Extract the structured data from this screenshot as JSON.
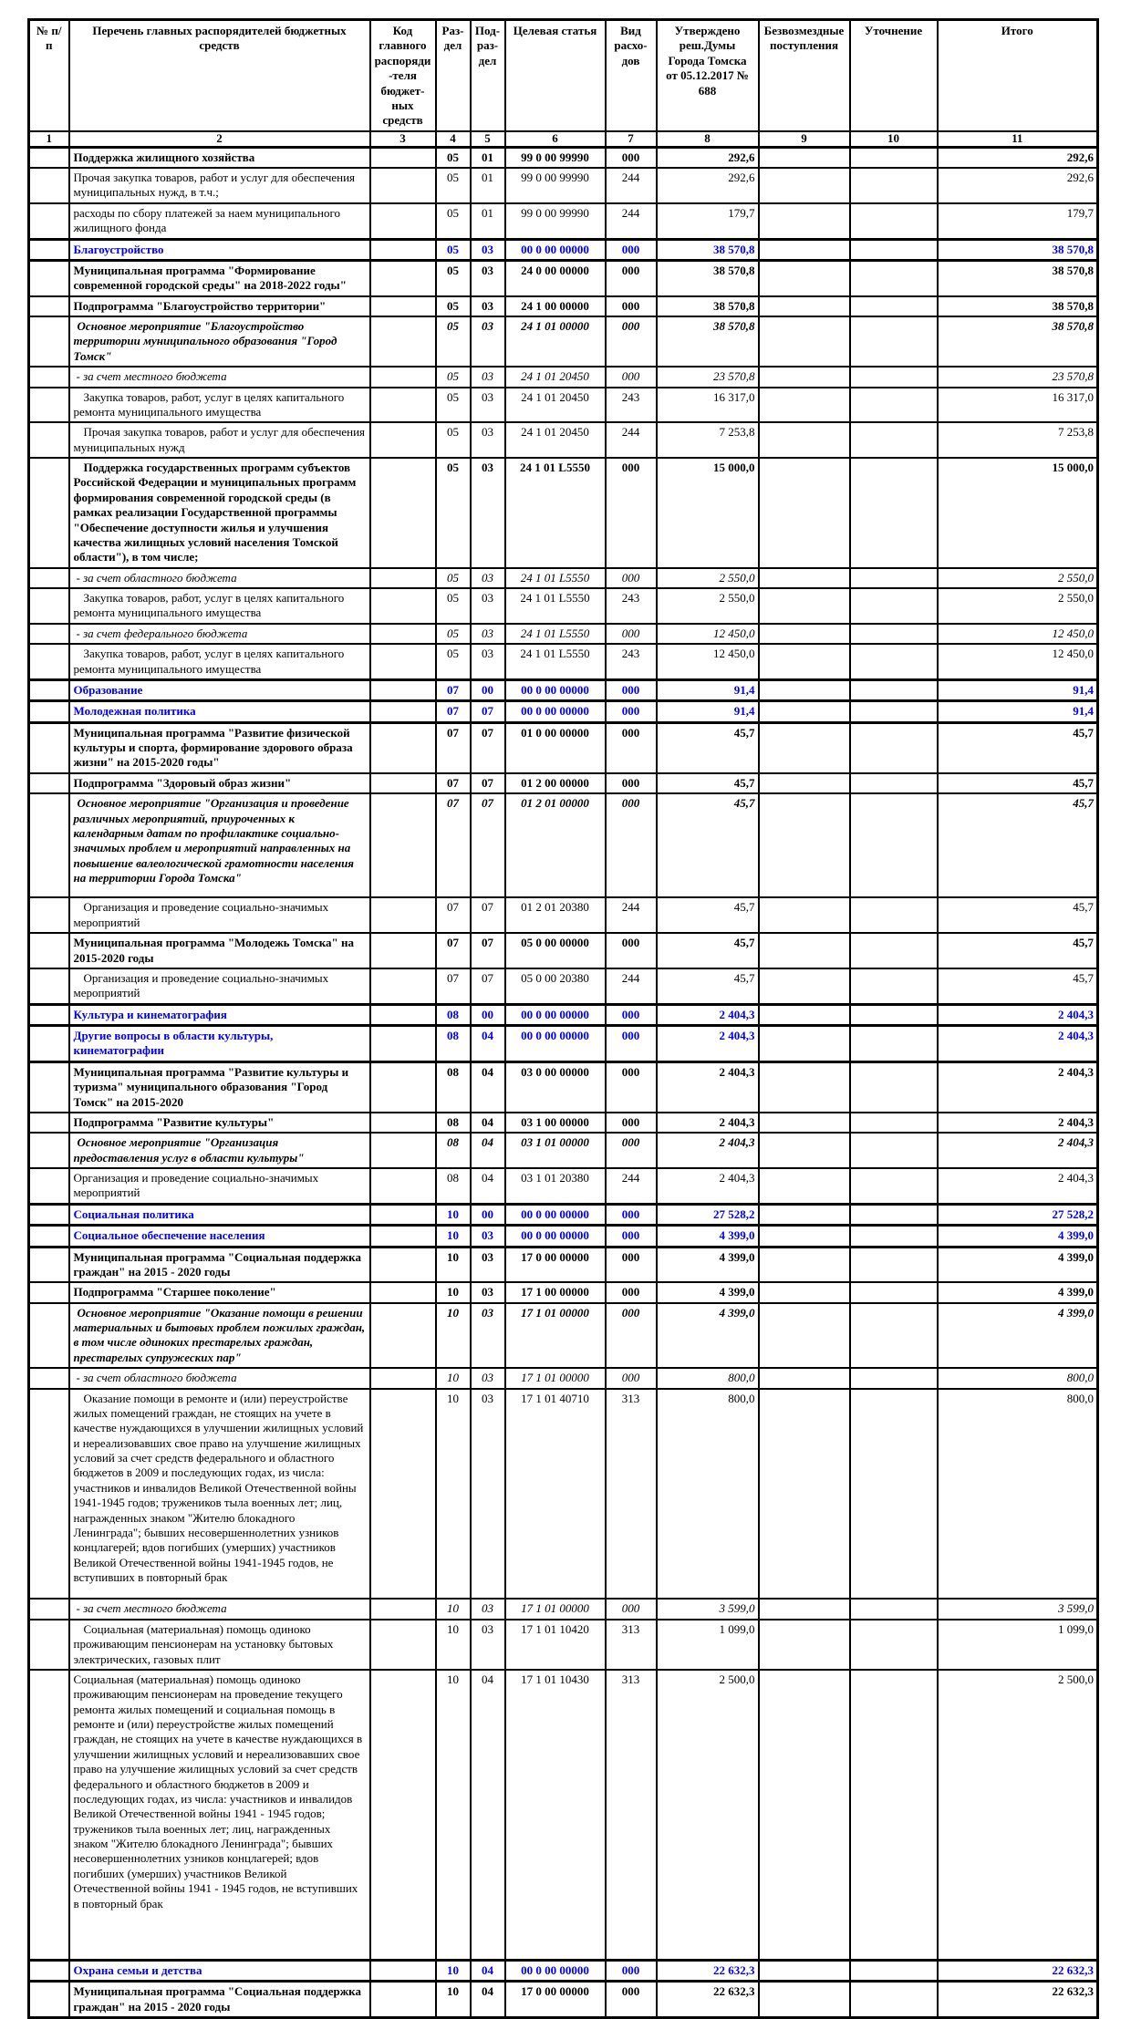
{
  "header": {
    "columns": [
      {
        "id": "num",
        "label": "№ п/п",
        "number": "1"
      },
      {
        "id": "name",
        "label": "Перечень главных распорядителей бюджетных средств",
        "number": "2"
      },
      {
        "id": "code",
        "label": "Код главного распоряди-теля бюджет-ных средств",
        "number": "3"
      },
      {
        "id": "razdel",
        "label": "Раз-дел",
        "number": "4"
      },
      {
        "id": "podrazdel",
        "label": "Под-раз-дел",
        "number": "5"
      },
      {
        "id": "target",
        "label": "Целевая статья",
        "number": "6"
      },
      {
        "id": "vid",
        "label": "Вид расхо-дов",
        "number": "7"
      },
      {
        "id": "approved",
        "label": "Утверждено реш.Думы Города Томска от 05.12.2017 № 688",
        "number": "8"
      },
      {
        "id": "bezv",
        "label": "Безвозмездные поступления",
        "number": "9"
      },
      {
        "id": "utoch",
        "label": "Уточнение",
        "number": "10"
      },
      {
        "id": "total",
        "label": "Итого",
        "number": "11"
      }
    ]
  },
  "rows": [
    {
      "style": "program-bold",
      "name": "Поддержка жилищного хозяйства",
      "razdel": "05",
      "podrazdel": "01",
      "target": "99 0 00 99990",
      "vid": "000",
      "approved": "292,6",
      "total": "292,6"
    },
    {
      "style": "plain",
      "name": "Прочая закупка товаров, работ и услуг для обеспечения муниципальных нужд, в т.ч.;",
      "razdel": "05",
      "podrazdel": "01",
      "target": "99 0 00 99990",
      "vid": "244",
      "approved": "292,6",
      "total": "292,6"
    },
    {
      "style": "plain",
      "name": "расходы по сбору платежей за наем муниципального жилищного фонда",
      "razdel": "05",
      "podrazdel": "01",
      "target": "99 0 00 99990",
      "vid": "244",
      "approved": "179,7",
      "total": "179,7"
    },
    {
      "style": "section-blue",
      "name": "Благоустройство",
      "razdel": "05",
      "podrazdel": "03",
      "target": "00 0 00 00000",
      "vid": "000",
      "approved": "38 570,8",
      "total": "38 570,8"
    },
    {
      "style": "program-bold",
      "name": "Муниципальная программа \"Формирование современной городской среды\" на 2018-2022 годы\"",
      "razdel": "05",
      "podrazdel": "03",
      "target": "24 0 00 00000",
      "vid": "000",
      "approved": "38 570,8",
      "total": "38 570,8"
    },
    {
      "style": "program-bold",
      "name": "Подпрограмма \"Благоустройство территории\"",
      "razdel": "05",
      "podrazdel": "03",
      "target": "24 1 00 00000",
      "vid": "000",
      "approved": "38 570,8",
      "total": "38 570,8"
    },
    {
      "style": "event-bolditalic",
      "name": "Основное мероприятие \"Благоустройство территории муниципального образования \"Город Томск\"",
      "razdel": "05",
      "podrazdel": "03",
      "target": "24 1 01 00000",
      "vid": "000",
      "approved": "38 570,8",
      "total": "38 570,8"
    },
    {
      "style": "source-italic",
      "name": "- за счет местного бюджета",
      "razdel": "05",
      "podrazdel": "03",
      "target": "24 1 01 20450",
      "vid": "000",
      "approved": "23 570,8",
      "total": "23 570,8"
    },
    {
      "style": "plain",
      "indent": true,
      "name": "Закупка товаров, работ, услуг в целях капитального ремонта муниципального имущества",
      "razdel": "05",
      "podrazdel": "03",
      "target": "24 1 01 20450",
      "vid": "243",
      "approved": "16 317,0",
      "total": "16 317,0"
    },
    {
      "style": "plain",
      "indent": true,
      "name": "Прочая закупка товаров, работ и услуг для обеспечения муниципальных нужд",
      "razdel": "05",
      "podrazdel": "03",
      "target": "24 1 01 20450",
      "vid": "244",
      "approved": "7 253,8",
      "total": "7 253,8"
    },
    {
      "style": "program-bold",
      "indent": true,
      "name": "Поддержка государственных программ субъектов Российской Федерации и муниципальных программ формирования современной городской среды (в рамках реализации Государственной программы \"Обеспечение доступности жилья и улучшения качества жилищных условий населения Томской области\"), в том числе;",
      "razdel": "05",
      "podrazdel": "03",
      "target": "24 1 01 L5550",
      "vid": "000",
      "approved": "15 000,0",
      "total": "15 000,0"
    },
    {
      "style": "source-italic",
      "name": "- за счет областного бюджета",
      "razdel": "05",
      "podrazdel": "03",
      "target": "24 1 01 L5550",
      "vid": "000",
      "approved": "2 550,0",
      "total": "2 550,0"
    },
    {
      "style": "plain",
      "indent": true,
      "name": "Закупка товаров, работ, услуг в целях капитального ремонта муниципального имущества",
      "razdel": "05",
      "podrazdel": "03",
      "target": "24 1 01 L5550",
      "vid": "243",
      "approved": "2 550,0",
      "total": "2 550,0"
    },
    {
      "style": "source-italic",
      "name": "- за счет федерального бюджета",
      "razdel": "05",
      "podrazdel": "03",
      "target": "24 1 01 L5550",
      "vid": "000",
      "approved": "12 450,0",
      "total": "12 450,0"
    },
    {
      "style": "plain",
      "indent": true,
      "name": "Закупка товаров, работ, услуг в целях капитального ремонта муниципального имущества",
      "razdel": "05",
      "podrazdel": "03",
      "target": "24 1 01 L5550",
      "vid": "243",
      "approved": "12 450,0",
      "total": "12 450,0"
    },
    {
      "style": "section-blue",
      "name": "Образование",
      "razdel": "07",
      "podrazdel": "00",
      "target": "00 0 00 00000",
      "vid": "000",
      "approved": "91,4",
      "total": "91,4"
    },
    {
      "style": "section-blue",
      "name": "Молодежная политика",
      "razdel": "07",
      "podrazdel": "07",
      "target": "00 0 00 00000",
      "vid": "000",
      "approved": "91,4",
      "total": "91,4"
    },
    {
      "style": "program-bold",
      "name": "Муниципальная программа \"Развитие физической культуры и спорта, формирование здорового образа жизни\" на 2015-2020 годы\"",
      "razdel": "07",
      "podrazdel": "07",
      "target": "01 0 00 00000",
      "vid": "000",
      "approved": "45,7",
      "total": "45,7"
    },
    {
      "style": "program-bold",
      "name": "Подпрограмма \"Здоровый образ жизни\"",
      "razdel": "07",
      "podrazdel": "07",
      "target": "01 2 00 00000",
      "vid": "000",
      "approved": "45,7",
      "total": "45,7"
    },
    {
      "style": "event-bolditalic",
      "name": "Основное мероприятие \"Организация и проведение различных мероприятий, приуроченных к календарным датам по профилактике социально-значимых проблем и мероприятий направленных на повышение валеологической грамотности населения на территории Города Томска\"",
      "razdel": "07",
      "podrazdel": "07",
      "target": "01 2 01 00000",
      "vid": "000",
      "approved": "45,7",
      "total": "45,7"
    },
    {
      "style": "plain",
      "indent": true,
      "name": "Организация и проведение социально-значимых мероприятий",
      "razdel": "07",
      "podrazdel": "07",
      "target": "01 2 01 20380",
      "vid": "244",
      "approved": "45,7",
      "total": "45,7"
    },
    {
      "style": "program-bold",
      "name": "Муниципальная программа \"Молодежь Томска\" на 2015-2020 годы",
      "razdel": "07",
      "podrazdel": "07",
      "target": "05 0 00 00000",
      "vid": "000",
      "approved": "45,7",
      "total": "45,7"
    },
    {
      "style": "plain",
      "indent": true,
      "name": "Организация и проведение социально-значимых мероприятий",
      "razdel": "07",
      "podrazdel": "07",
      "target": "05 0 00 20380",
      "vid": "244",
      "approved": "45,7",
      "total": "45,7"
    },
    {
      "style": "section-blue",
      "name": "Культура и кинематография",
      "razdel": "08",
      "podrazdel": "00",
      "target": "00 0 00 00000",
      "vid": "000",
      "approved": "2 404,3",
      "total": "2 404,3"
    },
    {
      "style": "section-blue",
      "name": "Другие вопросы в области культуры, кинематографии",
      "razdel": "08",
      "podrazdel": "04",
      "target": "00 0 00 00000",
      "vid": "000",
      "approved": "2 404,3",
      "total": "2 404,3"
    },
    {
      "style": "program-bold",
      "name": "Муниципальная программа \"Развитие культуры и туризма\" муниципального образования \"Город Томск\" на 2015-2020",
      "razdel": "08",
      "podrazdel": "04",
      "target": "03 0 00 00000",
      "vid": "000",
      "approved": "2 404,3",
      "total": "2 404,3"
    },
    {
      "style": "program-bold",
      "name": "Подпрограмма \"Развитие культуры\"",
      "razdel": "08",
      "podrazdel": "04",
      "target": "03 1 00 00000",
      "vid": "000",
      "approved": "2 404,3",
      "total": "2 404,3"
    },
    {
      "style": "event-bolditalic",
      "name": "Основное мероприятие \"Организация предоставления услуг в области культуры\"",
      "razdel": "08",
      "podrazdel": "04",
      "target": "03 1 01 00000",
      "vid": "000",
      "approved": "2 404,3",
      "total": "2 404,3"
    },
    {
      "style": "plain",
      "name": "Организация и проведение социально-значимых мероприятий",
      "razdel": "08",
      "podrazdel": "04",
      "target": "03 1 01 20380",
      "vid": "244",
      "approved": "2 404,3",
      "total": "2 404,3"
    },
    {
      "style": "section-blue",
      "name": "Социальная политика",
      "razdel": "10",
      "podrazdel": "00",
      "target": "00 0 00 00000",
      "vid": "000",
      "approved": "27 528,2",
      "total": "27 528,2"
    },
    {
      "style": "section-blue",
      "name": "Социальное обеспечение населения",
      "razdel": "10",
      "podrazdel": "03",
      "target": "00 0 00 00000",
      "vid": "000",
      "approved": "4 399,0",
      "total": "4 399,0"
    },
    {
      "style": "program-bold",
      "name": "Муниципальная программа \"Социальная поддержка граждан\" на 2015 - 2020 годы",
      "razdel": "10",
      "podrazdel": "03",
      "target": "17 0 00 00000",
      "vid": "000",
      "approved": "4 399,0",
      "total": "4 399,0"
    },
    {
      "style": "program-bold",
      "name": "Подпрограмма \"Старшее поколение\"",
      "razdel": "10",
      "podrazdel": "03",
      "target": "17 1 00 00000",
      "vid": "000",
      "approved": "4 399,0",
      "total": "4 399,0"
    },
    {
      "style": "event-bolditalic",
      "name": "Основное мероприятие \"Оказание помощи в решении материальных и бытовых проблем пожилых граждан, в том числе одиноких престарелых граждан, престарелых супружеских пар\"",
      "razdel": "10",
      "podrazdel": "03",
      "target": "17 1 01 00000",
      "vid": "000",
      "approved": "4 399,0",
      "total": "4 399,0"
    },
    {
      "style": "source-italic",
      "name": "- за счет областного бюджета",
      "razdel": "10",
      "podrazdel": "03",
      "target": "17 1 01 00000",
      "vid": "000",
      "approved": "800,0",
      "total": "800,0"
    },
    {
      "style": "plain",
      "indent": true,
      "name": "Оказание помощи в ремонте и (или) переустройстве жилых помещений граждан, не стоящих на учете в качестве нуждающихся в улучшении жилищных условий и нереализовавших свое право на улучшение жилищных условий за счет средств федерального и областного бюджетов в 2009 и последующих годах, из числа: участников и инвалидов Великой Отечественной войны 1941-1945 годов; тружеников тыла военных лет; лиц, награжденных знаком \"Жителю блокадного Ленинграда\"; бывших несовершеннолетних узников концлагерей; вдов погибших (умерших) участников Великой Отечественной войны 1941-1945 годов, не вступивших в повторный брак",
      "razdel": "10",
      "podrazdel": "03",
      "target": "17 1 01 40710",
      "vid": "313",
      "approved": "800,0",
      "total": "800,0"
    },
    {
      "style": "source-italic",
      "name": "- за счет местного бюджета",
      "razdel": "10",
      "podrazdel": "03",
      "target": "17 1 01 00000",
      "vid": "000",
      "approved": "3 599,0",
      "total": "3 599,0"
    },
    {
      "style": "plain",
      "indent": true,
      "name": "Социальная (материальная) помощь одиноко проживающим пенсионерам на установку бытовых электрических, газовых плит",
      "razdel": "10",
      "podrazdel": "03",
      "target": "17 1 01 10420",
      "vid": "313",
      "approved": "1 099,0",
      "total": "1 099,0"
    },
    {
      "style": "plain",
      "name": "Социальная (материальная) помощь одиноко проживающим пенсионерам на проведение текущего ремонта жилых помещений и социальная помощь в ремонте и (или) переустройстве жилых помещений граждан, не стоящих на учете в качестве нуждающихся в улучшении жилищных условий и нереализовавших свое право на улучшение жилищных условий за счет средств федерального и областного бюджетов в 2009 и последующих годах, из числа: участников и инвалидов Великой Отечественной войны 1941 - 1945 годов; тружеников тыла военных лет; лиц, награжденных знаком \"Жителю блокадного Ленинграда\"; бывших несовершеннолетних узников концлагерей; вдов погибших (умерших) участников Великой Отечественной войны 1941 - 1945 годов, не вступивших в повторный брак",
      "razdel": "10",
      "podrazdel": "04",
      "target": "17 1 01 10430",
      "vid": "313",
      "approved": "2 500,0",
      "total": "2 500,0"
    },
    {
      "style": "section-blue",
      "name": "Охрана семьи и детства",
      "razdel": "10",
      "podrazdel": "04",
      "target": "00 0 00 00000",
      "vid": "000",
      "approved": "22 632,3",
      "total": "22 632,3"
    },
    {
      "style": "program-bold",
      "name": "Муниципальная программа \"Социальная поддержка граждан\" на 2015 - 2020 годы",
      "razdel": "10",
      "podrazdel": "04",
      "target": "17 0 00 00000",
      "vid": "000",
      "approved": "22 632,3",
      "total": "22 632,3"
    }
  ]
}
